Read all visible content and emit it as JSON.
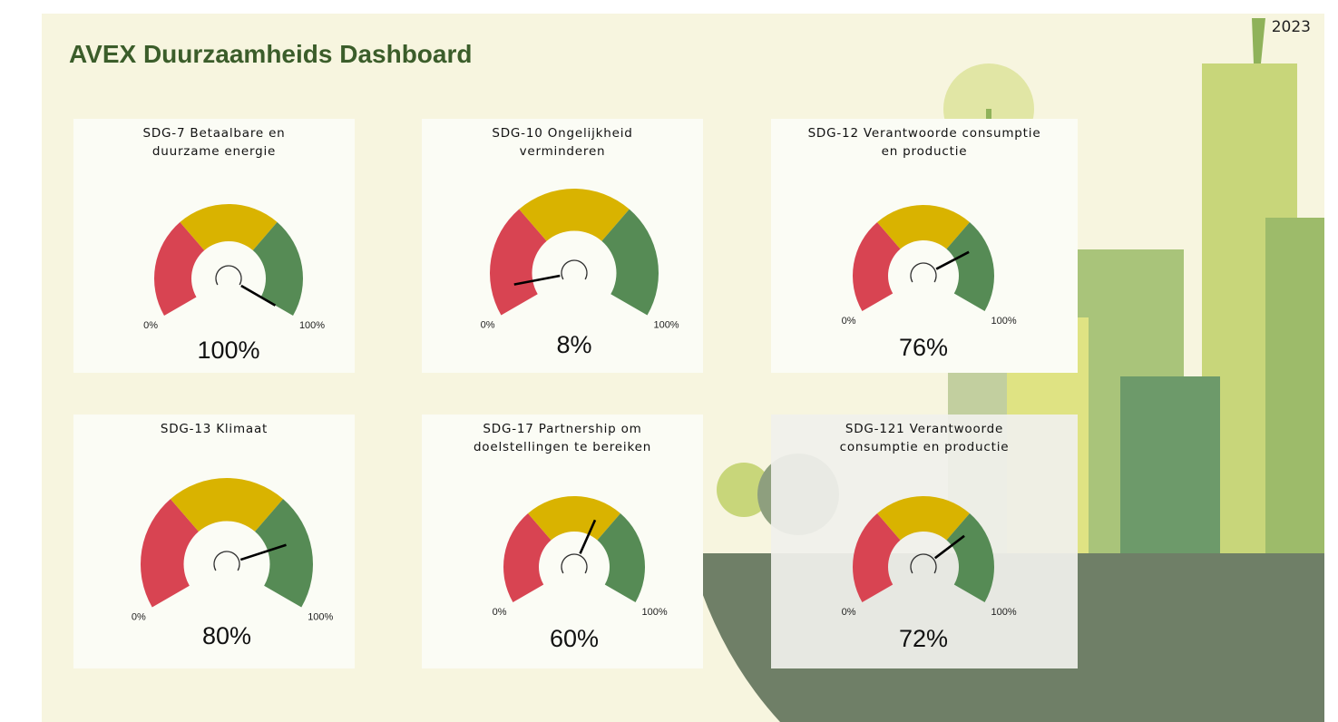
{
  "header": {
    "title": "AVEX Duurzaamheids Dashboard",
    "year": "2023"
  },
  "chart_data": [
    {
      "type": "gauge",
      "title": "SDG-7 Betaalbare en duurzame energie",
      "value": 100,
      "value_label": "100%",
      "range": [
        0,
        100
      ],
      "ticks": [
        {
          "value": 0,
          "label": "0%"
        },
        {
          "value": 100,
          "label": "100%"
        }
      ],
      "bands": [
        {
          "from": 0,
          "to": 33,
          "color": "#d84452"
        },
        {
          "from": 33,
          "to": 67,
          "color": "#d9b300"
        },
        {
          "from": 67,
          "to": 100,
          "color": "#568b55"
        }
      ]
    },
    {
      "type": "gauge",
      "title": "SDG-10 Ongelijkheid verminderen",
      "value": 8,
      "value_label": "8%",
      "range": [
        0,
        100
      ],
      "ticks": [
        {
          "value": 0,
          "label": "0%"
        },
        {
          "value": 100,
          "label": "100%"
        }
      ],
      "bands": [
        {
          "from": 0,
          "to": 33,
          "color": "#d84452"
        },
        {
          "from": 33,
          "to": 67,
          "color": "#d9b300"
        },
        {
          "from": 67,
          "to": 100,
          "color": "#568b55"
        }
      ]
    },
    {
      "type": "gauge",
      "title": "SDG-12 Verantwoorde consumptie en productie",
      "value": 76,
      "value_label": "76%",
      "range": [
        0,
        100
      ],
      "ticks": [
        {
          "value": 0,
          "label": "0%"
        },
        {
          "value": 100,
          "label": "100%"
        }
      ],
      "bands": [
        {
          "from": 0,
          "to": 33,
          "color": "#d84452"
        },
        {
          "from": 33,
          "to": 67,
          "color": "#d9b300"
        },
        {
          "from": 67,
          "to": 100,
          "color": "#568b55"
        }
      ]
    },
    {
      "type": "gauge",
      "title": "SDG-13 Klimaat",
      "value": 80,
      "value_label": "80%",
      "range": [
        0,
        100
      ],
      "ticks": [
        {
          "value": 0,
          "label": "0%"
        },
        {
          "value": 100,
          "label": "100%"
        }
      ],
      "bands": [
        {
          "from": 0,
          "to": 33,
          "color": "#d84452"
        },
        {
          "from": 33,
          "to": 67,
          "color": "#d9b300"
        },
        {
          "from": 67,
          "to": 100,
          "color": "#568b55"
        }
      ]
    },
    {
      "type": "gauge",
      "title": "SDG-17 Partnership om doelstellingen te bereiken",
      "value": 60,
      "value_label": "60%",
      "range": [
        0,
        100
      ],
      "ticks": [
        {
          "value": 0,
          "label": "0%"
        },
        {
          "value": 100,
          "label": "100%"
        }
      ],
      "bands": [
        {
          "from": 0,
          "to": 33,
          "color": "#d84452"
        },
        {
          "from": 33,
          "to": 67,
          "color": "#d9b300"
        },
        {
          "from": 67,
          "to": 100,
          "color": "#568b55"
        }
      ]
    },
    {
      "type": "gauge",
      "title": "SDG-121 Verantwoorde consumptie en productie",
      "value": 72,
      "value_label": "72%",
      "range": [
        0,
        100
      ],
      "ticks": [
        {
          "value": 0,
          "label": "0%"
        },
        {
          "value": 100,
          "label": "100%"
        }
      ],
      "bands": [
        {
          "from": 0,
          "to": 33,
          "color": "#d84452"
        },
        {
          "from": 33,
          "to": 67,
          "color": "#d9b300"
        },
        {
          "from": 67,
          "to": 100,
          "color": "#568b55"
        }
      ]
    }
  ]
}
